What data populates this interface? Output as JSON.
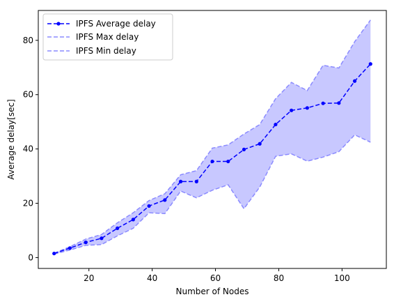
{
  "chart_data": {
    "type": "line",
    "xlabel": "Number of Nodes",
    "ylabel": "Average delay[sec]",
    "xlim": [
      4,
      114
    ],
    "ylim": [
      -4,
      91
    ],
    "xticks": [
      20,
      40,
      60,
      80,
      100
    ],
    "yticks": [
      0,
      20,
      40,
      60,
      80
    ],
    "grid": false,
    "legend_position": "top-left",
    "x": [
      9,
      14,
      19,
      24,
      29,
      34,
      39,
      44,
      49,
      54,
      59,
      64,
      69,
      74,
      79,
      84,
      89,
      94,
      99,
      104,
      109
    ],
    "series": [
      {
        "name": "IPFS Average delay",
        "style": "dashed-with-markers",
        "color": "#0000ff",
        "values": [
          1.5,
          3.5,
          5.6,
          7.1,
          10.8,
          14.0,
          19.0,
          21.2,
          28.0,
          28.0,
          35.4,
          35.4,
          39.8,
          41.9,
          49.0,
          54.2,
          55.1,
          56.8,
          56.9,
          65.0,
          71.3
        ]
      },
      {
        "name": "IPFS Max delay",
        "style": "dashed",
        "color": "#8b8bff",
        "values": [
          1.6,
          4.0,
          6.8,
          8.5,
          12.8,
          16.5,
          21.0,
          23.5,
          30.5,
          32.0,
          40.3,
          41.5,
          45.5,
          49.0,
          58.5,
          64.5,
          61.5,
          70.8,
          69.8,
          79.5,
          87.5
        ]
      },
      {
        "name": "IPFS Min delay",
        "style": "dashed",
        "color": "#8b8bff",
        "values": [
          1.3,
          2.8,
          4.5,
          4.8,
          8.0,
          10.8,
          16.5,
          16.2,
          24.5,
          22.0,
          24.8,
          26.8,
          18.0,
          26.0,
          37.3,
          38.2,
          35.5,
          37.0,
          39.0,
          45.2,
          42.5
        ]
      }
    ],
    "fill_between": {
      "upper": "IPFS Max delay",
      "lower": "IPFS Min delay",
      "color": "#c8c8ff"
    }
  }
}
